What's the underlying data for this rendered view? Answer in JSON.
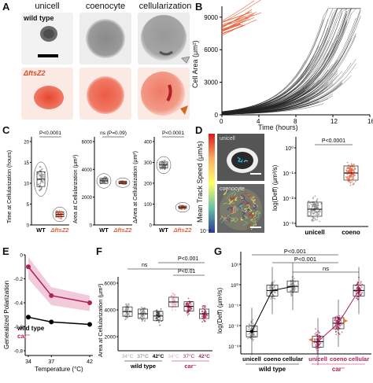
{
  "panels": {
    "A": {
      "label": "A",
      "col_headers": [
        "unicell",
        "coenocyte",
        "cellularization"
      ],
      "row_wt": "wild type",
      "row_mut": "ΔftsZ2"
    },
    "B": {
      "label": "B",
      "ylabel": "Cell Area (μm²)",
      "xlabel": "Time (hours)",
      "yticks": [
        "0",
        "3000",
        "6000",
        "9000"
      ],
      "xticks": [
        "0",
        "4",
        "8",
        "12",
        "16"
      ]
    },
    "C": {
      "label": "C",
      "plots": [
        {
          "ylabel": "Time at Cellularization (hours)",
          "stat": "P<0.0001",
          "yticks": [
            "20",
            "15",
            "10",
            "5",
            "0"
          ],
          "cats": [
            "WT",
            "ΔftsZ2"
          ]
        },
        {
          "ylabel": "Area at Cellularization (μm²)",
          "stat": "ns (P=0.09)",
          "yticks": [
            "6000",
            "4000",
            "2000",
            "0"
          ],
          "cats": [
            "WT",
            "ΔftsZ2"
          ]
        },
        {
          "ylabel": "ΔArea at Cellularization (μm²)",
          "stat": "P<0.0001",
          "yticks": [
            "400",
            "300",
            "200",
            "100",
            "0"
          ],
          "cats": [
            "WT",
            "ΔftsZ2"
          ]
        }
      ]
    },
    "D": {
      "label": "D",
      "colorbar_label": "Mean Track Speed (μm/s)",
      "cb_top": "10⁻²",
      "cb_bottom": "10⁻⁴",
      "img_top": "unicell",
      "img_bottom": "coenocyte",
      "plot_ylabel": "log(Deff) (μm²/s)",
      "stat": "P<0.0001",
      "yticks": [
        "10⁰",
        "10⁻¹",
        "10⁻²",
        "10⁻³"
      ],
      "cats": [
        "unicell",
        "coeno"
      ]
    },
    "E": {
      "label": "E",
      "ylabel": "Generalized Polarization",
      "xlabel": "Temperature (°C)",
      "yticks": [
        "0",
        "-0.2",
        "-0.4",
        "-0.6",
        "-0.8"
      ],
      "xticks": [
        "34",
        "37",
        "42"
      ],
      "legend_wt": "wild type",
      "legend_mut": "car⁻"
    },
    "F": {
      "label": "F",
      "ylabel": "Area at Cellularization (μm²)",
      "yticks": [
        "6000",
        "4000",
        "2000"
      ],
      "stats": [
        "ns",
        "P<0.001",
        "P<0.01"
      ],
      "cats": [
        "34°C",
        "37°C",
        "42°C",
        "34°C",
        "37°C",
        "42°C"
      ],
      "group_wt": "wild type",
      "group_mut": "car⁻"
    },
    "G": {
      "label": "G",
      "ylabel": "log(Deff) (μm²/s)",
      "stats": [
        "P<0.001",
        "P<0.001",
        "ns"
      ],
      "yticks": [
        "10¹",
        "10⁰",
        "10⁻¹",
        "10⁻²",
        "10⁻³"
      ],
      "cats": [
        "unicell",
        "coeno",
        "cellular",
        "unicell",
        "coeno",
        "cellular"
      ],
      "group_wt": "wild type",
      "group_mut": "car⁻"
    }
  },
  "colors": {
    "wt": "#222222",
    "mut": "#e8623e",
    "car": "#b0205a",
    "car_light": "#e9a7bf"
  }
}
